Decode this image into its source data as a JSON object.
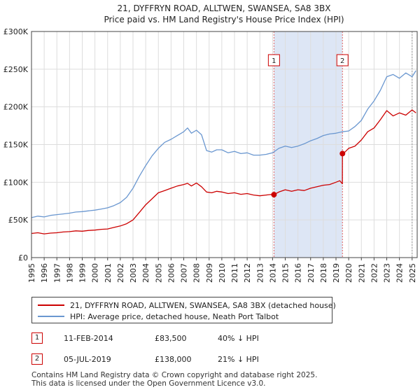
{
  "chart_data": {
    "type": "line",
    "title_line1": "21, DYFFRYN ROAD, ALLTWEN, SWANSEA, SA8 3BX",
    "title_line2": "Price paid vs. HM Land Registry's House Price Index (HPI)",
    "xlim": [
      1995,
      2025.4
    ],
    "ylim": [
      0,
      300000
    ],
    "y_ticks": [
      {
        "value": 0,
        "label": "£0"
      },
      {
        "value": 50000,
        "label": "£50K"
      },
      {
        "value": 100000,
        "label": "£100K"
      },
      {
        "value": 150000,
        "label": "£150K"
      },
      {
        "value": 200000,
        "label": "£200K"
      },
      {
        "value": 250000,
        "label": "£250K"
      },
      {
        "value": 300000,
        "label": "£300K"
      }
    ],
    "x_ticks": [
      "1995",
      "1996",
      "1997",
      "1998",
      "1999",
      "2000",
      "2001",
      "2002",
      "2003",
      "2004",
      "2005",
      "2006",
      "2007",
      "2008",
      "2009",
      "2010",
      "2011",
      "2012",
      "2013",
      "2014",
      "2015",
      "2016",
      "2017",
      "2018",
      "2019",
      "2020",
      "2021",
      "2022",
      "2023",
      "2024",
      "2025"
    ],
    "shaded_region": [
      2014.11,
      2019.51
    ],
    "vlines": [
      2014.11,
      2019.51,
      2025.0
    ],
    "series": [
      {
        "name": "21, DYFFRYN ROAD, ALLTWEN, SWANSEA, SA8 3BX (detached house)",
        "color": "#cc0000",
        "x": [
          1995.0,
          1995.5,
          1996.0,
          1996.5,
          1997.0,
          1997.5,
          1998.0,
          1998.5,
          1999.0,
          1999.5,
          2000.0,
          2000.5,
          2001.0,
          2001.5,
          2002.0,
          2002.5,
          2003.0,
          2003.5,
          2004.0,
          2004.5,
          2005.0,
          2005.5,
          2006.0,
          2006.5,
          2007.0,
          2007.3,
          2007.6,
          2008.0,
          2008.4,
          2008.8,
          2009.2,
          2009.6,
          2010.0,
          2010.5,
          2011.0,
          2011.5,
          2012.0,
          2012.5,
          2013.0,
          2013.5,
          2014.0,
          2014.11,
          2014.5,
          2015.0,
          2015.5,
          2016.0,
          2016.5,
          2017.0,
          2017.5,
          2018.0,
          2018.5,
          2019.0,
          2019.3,
          2019.5,
          2019.51,
          2019.7,
          2020.0,
          2020.5,
          2021.0,
          2021.5,
          2022.0,
          2022.5,
          2023.0,
          2023.5,
          2024.0,
          2024.5,
          2025.0,
          2025.3
        ],
        "values": [
          32000,
          33000,
          31500,
          32500,
          33000,
          34000,
          34500,
          35500,
          35000,
          36000,
          36500,
          37500,
          38000,
          40000,
          42000,
          45000,
          50000,
          60000,
          70000,
          78000,
          86000,
          89000,
          92000,
          95000,
          97000,
          98500,
          95000,
          99000,
          94000,
          87000,
          86000,
          88000,
          87000,
          85000,
          86000,
          84000,
          85000,
          83000,
          82000,
          83000,
          84000,
          83500,
          87000,
          90000,
          88000,
          90000,
          89000,
          92000,
          94000,
          96000,
          97000,
          100000,
          102000,
          98000,
          138000,
          140000,
          145000,
          148000,
          156000,
          167000,
          172000,
          183000,
          195000,
          188000,
          192000,
          189000,
          196000,
          192000
        ]
      },
      {
        "name": "HPI: Average price, detached house, Neath Port Talbot",
        "color": "#6a97d0",
        "x": [
          1995.0,
          1995.5,
          1996.0,
          1996.5,
          1997.0,
          1997.5,
          1998.0,
          1998.5,
          1999.0,
          1999.5,
          2000.0,
          2000.5,
          2001.0,
          2001.5,
          2002.0,
          2002.5,
          2003.0,
          2003.5,
          2004.0,
          2004.5,
          2005.0,
          2005.5,
          2006.0,
          2006.5,
          2007.0,
          2007.3,
          2007.6,
          2008.0,
          2008.4,
          2008.8,
          2009.2,
          2009.6,
          2010.0,
          2010.5,
          2011.0,
          2011.5,
          2012.0,
          2012.5,
          2013.0,
          2013.5,
          2014.0,
          2014.5,
          2015.0,
          2015.5,
          2016.0,
          2016.5,
          2017.0,
          2017.5,
          2018.0,
          2018.5,
          2019.0,
          2019.5,
          2020.0,
          2020.5,
          2021.0,
          2021.5,
          2022.0,
          2022.5,
          2023.0,
          2023.5,
          2024.0,
          2024.5,
          2025.0,
          2025.3
        ],
        "values": [
          53000,
          55000,
          54000,
          56000,
          57000,
          58000,
          59000,
          60500,
          61000,
          62000,
          63000,
          64500,
          66000,
          69000,
          73000,
          80000,
          92000,
          108000,
          122000,
          135000,
          145000,
          153000,
          157000,
          162000,
          167000,
          172000,
          165000,
          169000,
          163000,
          142000,
          140000,
          143000,
          143000,
          139000,
          141000,
          138000,
          139000,
          136000,
          136000,
          137000,
          139000,
          145000,
          148000,
          146000,
          148000,
          151000,
          155000,
          158000,
          162000,
          164000,
          165000,
          167000,
          168000,
          174000,
          182000,
          197000,
          208000,
          222000,
          240000,
          243000,
          238000,
          245000,
          240000,
          248000
        ]
      }
    ],
    "markers": [
      {
        "label": "1",
        "x": 2014.11,
        "y": 83500
      },
      {
        "label": "2",
        "x": 2019.51,
        "y": 138000
      }
    ]
  },
  "legend": {
    "property_label": "21, DYFFRYN ROAD, ALLTWEN, SWANSEA, SA8 3BX (detached house)",
    "hpi_label": "HPI: Average price, detached house, Neath Port Talbot"
  },
  "sales": [
    {
      "num": "1",
      "date": "11-FEB-2014",
      "price": "£83,500",
      "hpi": "40% ↓ HPI"
    },
    {
      "num": "2",
      "date": "05-JUL-2019",
      "price": "£138,000",
      "hpi": "21% ↓ HPI"
    }
  ],
  "footer": {
    "line1": "Contains HM Land Registry data © Crown copyright and database right 2025.",
    "line2": "This data is licensed under the Open Government Licence v3.0."
  },
  "colors": {
    "property": "#cc0000",
    "hpi": "#6a97d0",
    "shade": "#dde6f5",
    "grid": "#dddddd"
  }
}
